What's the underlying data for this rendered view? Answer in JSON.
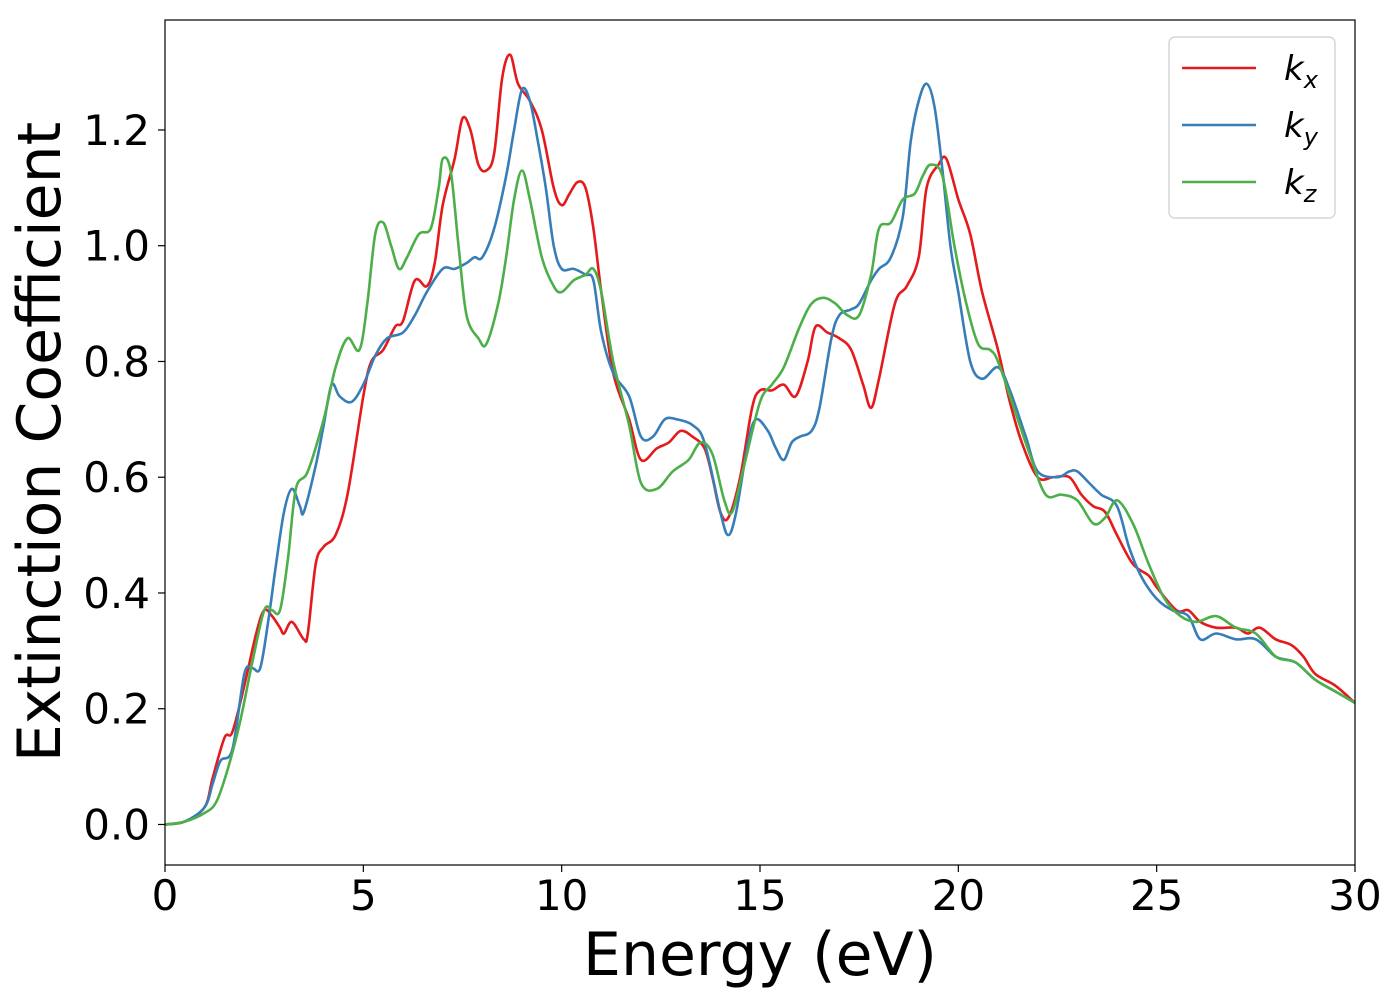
{
  "chart_data": {
    "type": "line",
    "xlabel": "Energy (eV)",
    "ylabel": "Extinction Coefficient",
    "xlim": [
      0,
      30
    ],
    "ylim": [
      -0.07,
      1.39
    ],
    "xticks": [
      0,
      5,
      10,
      15,
      20,
      25,
      30
    ],
    "yticks": [
      0.0,
      0.2,
      0.4,
      0.6,
      0.8,
      1.0,
      1.2
    ],
    "xtick_labels": [
      "0",
      "5",
      "10",
      "15",
      "20",
      "25",
      "30"
    ],
    "ytick_labels": [
      "0.0",
      "0.2",
      "0.4",
      "0.6",
      "0.8",
      "1.0",
      "1.2"
    ],
    "grid": false,
    "legend_position": "top-right",
    "series": [
      {
        "name": "k",
        "subscript": "x",
        "color": "#e41a1c",
        "points": [
          [
            0,
            0
          ],
          [
            0.5,
            0.005
          ],
          [
            1,
            0.03
          ],
          [
            1.2,
            0.08
          ],
          [
            1.5,
            0.15
          ],
          [
            1.7,
            0.16
          ],
          [
            2,
            0.24
          ],
          [
            2.3,
            0.33
          ],
          [
            2.5,
            0.37
          ],
          [
            2.7,
            0.36
          ],
          [
            2.9,
            0.34
          ],
          [
            3,
            0.33
          ],
          [
            3.2,
            0.35
          ],
          [
            3.5,
            0.32
          ],
          [
            3.6,
            0.33
          ],
          [
            3.8,
            0.45
          ],
          [
            4,
            0.48
          ],
          [
            4.3,
            0.5
          ],
          [
            4.6,
            0.57
          ],
          [
            5,
            0.74
          ],
          [
            5.2,
            0.8
          ],
          [
            5.5,
            0.82
          ],
          [
            5.8,
            0.86
          ],
          [
            6,
            0.87
          ],
          [
            6.3,
            0.94
          ],
          [
            6.6,
            0.93
          ],
          [
            6.8,
            0.97
          ],
          [
            7,
            1.07
          ],
          [
            7.3,
            1.15
          ],
          [
            7.5,
            1.22
          ],
          [
            7.7,
            1.2
          ],
          [
            7.9,
            1.14
          ],
          [
            8.1,
            1.13
          ],
          [
            8.3,
            1.16
          ],
          [
            8.5,
            1.29
          ],
          [
            8.7,
            1.33
          ],
          [
            8.9,
            1.28
          ],
          [
            9.2,
            1.25
          ],
          [
            9.5,
            1.2
          ],
          [
            9.8,
            1.1
          ],
          [
            10,
            1.07
          ],
          [
            10.2,
            1.09
          ],
          [
            10.4,
            1.11
          ],
          [
            10.6,
            1.1
          ],
          [
            10.8,
            1.03
          ],
          [
            11,
            0.92
          ],
          [
            11.3,
            0.78
          ],
          [
            11.7,
            0.7
          ],
          [
            12,
            0.63
          ],
          [
            12.4,
            0.65
          ],
          [
            12.7,
            0.66
          ],
          [
            13,
            0.68
          ],
          [
            13.3,
            0.67
          ],
          [
            13.6,
            0.65
          ],
          [
            13.8,
            0.6
          ],
          [
            14,
            0.54
          ],
          [
            14.2,
            0.53
          ],
          [
            14.5,
            0.6
          ],
          [
            14.8,
            0.72
          ],
          [
            15,
            0.75
          ],
          [
            15.3,
            0.75
          ],
          [
            15.6,
            0.76
          ],
          [
            15.9,
            0.74
          ],
          [
            16.2,
            0.8
          ],
          [
            16.4,
            0.86
          ],
          [
            16.7,
            0.85
          ],
          [
            17,
            0.84
          ],
          [
            17.3,
            0.82
          ],
          [
            17.6,
            0.76
          ],
          [
            17.8,
            0.72
          ],
          [
            18,
            0.77
          ],
          [
            18.4,
            0.9
          ],
          [
            18.7,
            0.93
          ],
          [
            19,
            0.98
          ],
          [
            19.2,
            1.1
          ],
          [
            19.5,
            1.14
          ],
          [
            19.7,
            1.15
          ],
          [
            20,
            1.08
          ],
          [
            20.3,
            1.02
          ],
          [
            20.6,
            0.92
          ],
          [
            21,
            0.82
          ],
          [
            21.3,
            0.73
          ],
          [
            21.6,
            0.66
          ],
          [
            22,
            0.6
          ],
          [
            22.4,
            0.6
          ],
          [
            22.8,
            0.6
          ],
          [
            23.1,
            0.57
          ],
          [
            23.4,
            0.55
          ],
          [
            23.7,
            0.54
          ],
          [
            24,
            0.5
          ],
          [
            24.4,
            0.45
          ],
          [
            24.8,
            0.43
          ],
          [
            25,
            0.41
          ],
          [
            25.5,
            0.37
          ],
          [
            25.8,
            0.37
          ],
          [
            26.1,
            0.35
          ],
          [
            26.5,
            0.34
          ],
          [
            27,
            0.34
          ],
          [
            27.3,
            0.33
          ],
          [
            27.6,
            0.34
          ],
          [
            28,
            0.32
          ],
          [
            28.4,
            0.31
          ],
          [
            28.7,
            0.29
          ],
          [
            29,
            0.26
          ],
          [
            29.5,
            0.24
          ],
          [
            30,
            0.21
          ]
        ]
      },
      {
        "name": "k",
        "subscript": "y",
        "color": "#377eb8",
        "points": [
          [
            0,
            0
          ],
          [
            0.5,
            0.005
          ],
          [
            1,
            0.03
          ],
          [
            1.2,
            0.07
          ],
          [
            1.4,
            0.11
          ],
          [
            1.7,
            0.13
          ],
          [
            2,
            0.26
          ],
          [
            2.2,
            0.27
          ],
          [
            2.4,
            0.27
          ],
          [
            2.6,
            0.35
          ],
          [
            2.8,
            0.45
          ],
          [
            3,
            0.54
          ],
          [
            3.2,
            0.58
          ],
          [
            3.4,
            0.55
          ],
          [
            3.5,
            0.54
          ],
          [
            3.8,
            0.62
          ],
          [
            4,
            0.69
          ],
          [
            4.2,
            0.76
          ],
          [
            4.4,
            0.74
          ],
          [
            4.7,
            0.73
          ],
          [
            5,
            0.76
          ],
          [
            5.3,
            0.81
          ],
          [
            5.6,
            0.84
          ],
          [
            6,
            0.85
          ],
          [
            6.3,
            0.88
          ],
          [
            6.6,
            0.92
          ],
          [
            7,
            0.96
          ],
          [
            7.3,
            0.96
          ],
          [
            7.6,
            0.97
          ],
          [
            7.8,
            0.98
          ],
          [
            8,
            0.98
          ],
          [
            8.3,
            1.03
          ],
          [
            8.6,
            1.12
          ],
          [
            8.8,
            1.2
          ],
          [
            9,
            1.27
          ],
          [
            9.2,
            1.25
          ],
          [
            9.4,
            1.18
          ],
          [
            9.6,
            1.1
          ],
          [
            9.8,
            1.0
          ],
          [
            10,
            0.96
          ],
          [
            10.3,
            0.96
          ],
          [
            10.6,
            0.95
          ],
          [
            10.8,
            0.94
          ],
          [
            11,
            0.85
          ],
          [
            11.3,
            0.78
          ],
          [
            11.7,
            0.74
          ],
          [
            12,
            0.67
          ],
          [
            12.3,
            0.67
          ],
          [
            12.6,
            0.7
          ],
          [
            12.9,
            0.7
          ],
          [
            13.3,
            0.69
          ],
          [
            13.6,
            0.66
          ],
          [
            14,
            0.54
          ],
          [
            14.2,
            0.5
          ],
          [
            14.4,
            0.54
          ],
          [
            14.7,
            0.66
          ],
          [
            14.9,
            0.7
          ],
          [
            15.2,
            0.68
          ],
          [
            15.4,
            0.65
          ],
          [
            15.6,
            0.63
          ],
          [
            15.8,
            0.66
          ],
          [
            16,
            0.67
          ],
          [
            16.3,
            0.68
          ],
          [
            16.5,
            0.72
          ],
          [
            16.8,
            0.84
          ],
          [
            17,
            0.88
          ],
          [
            17.3,
            0.89
          ],
          [
            17.5,
            0.9
          ],
          [
            17.8,
            0.94
          ],
          [
            18,
            0.96
          ],
          [
            18.3,
            0.98
          ],
          [
            18.6,
            1.05
          ],
          [
            18.8,
            1.18
          ],
          [
            19,
            1.25
          ],
          [
            19.2,
            1.28
          ],
          [
            19.4,
            1.24
          ],
          [
            19.6,
            1.13
          ],
          [
            19.8,
            1.0
          ],
          [
            20,
            0.92
          ],
          [
            20.3,
            0.8
          ],
          [
            20.6,
            0.77
          ],
          [
            21,
            0.79
          ],
          [
            21.3,
            0.75
          ],
          [
            21.7,
            0.67
          ],
          [
            22,
            0.61
          ],
          [
            22.5,
            0.6
          ],
          [
            22.8,
            0.61
          ],
          [
            23,
            0.61
          ],
          [
            23.3,
            0.59
          ],
          [
            23.6,
            0.57
          ],
          [
            24,
            0.55
          ],
          [
            24.3,
            0.48
          ],
          [
            24.6,
            0.43
          ],
          [
            25,
            0.39
          ],
          [
            25.4,
            0.37
          ],
          [
            25.8,
            0.36
          ],
          [
            26.1,
            0.32
          ],
          [
            26.5,
            0.33
          ],
          [
            27,
            0.32
          ],
          [
            27.5,
            0.32
          ],
          [
            28,
            0.29
          ],
          [
            28.5,
            0.28
          ],
          [
            29,
            0.25
          ],
          [
            29.5,
            0.23
          ],
          [
            30,
            0.21
          ]
        ]
      },
      {
        "name": "k",
        "subscript": "z",
        "color": "#4daf4a",
        "points": [
          [
            0,
            0
          ],
          [
            0.5,
            0.005
          ],
          [
            1,
            0.02
          ],
          [
            1.3,
            0.04
          ],
          [
            1.6,
            0.1
          ],
          [
            1.9,
            0.18
          ],
          [
            2.2,
            0.28
          ],
          [
            2.5,
            0.37
          ],
          [
            2.7,
            0.37
          ],
          [
            2.9,
            0.37
          ],
          [
            3.1,
            0.46
          ],
          [
            3.3,
            0.58
          ],
          [
            3.6,
            0.61
          ],
          [
            4,
            0.7
          ],
          [
            4.3,
            0.79
          ],
          [
            4.6,
            0.84
          ],
          [
            4.9,
            0.82
          ],
          [
            5.1,
            0.9
          ],
          [
            5.3,
            1.02
          ],
          [
            5.5,
            1.04
          ],
          [
            5.7,
            1.0
          ],
          [
            5.9,
            0.96
          ],
          [
            6.1,
            0.98
          ],
          [
            6.4,
            1.02
          ],
          [
            6.7,
            1.03
          ],
          [
            6.9,
            1.1
          ],
          [
            7,
            1.15
          ],
          [
            7.2,
            1.13
          ],
          [
            7.4,
            1.0
          ],
          [
            7.6,
            0.88
          ],
          [
            7.9,
            0.84
          ],
          [
            8.1,
            0.83
          ],
          [
            8.4,
            0.9
          ],
          [
            8.6,
            0.98
          ],
          [
            8.8,
            1.08
          ],
          [
            9,
            1.13
          ],
          [
            9.2,
            1.08
          ],
          [
            9.5,
            0.98
          ],
          [
            9.8,
            0.93
          ],
          [
            10,
            0.92
          ],
          [
            10.3,
            0.94
          ],
          [
            10.6,
            0.95
          ],
          [
            10.8,
            0.96
          ],
          [
            11,
            0.92
          ],
          [
            11.3,
            0.8
          ],
          [
            11.7,
            0.69
          ],
          [
            12,
            0.59
          ],
          [
            12.4,
            0.58
          ],
          [
            12.8,
            0.61
          ],
          [
            13.2,
            0.63
          ],
          [
            13.5,
            0.66
          ],
          [
            13.8,
            0.64
          ],
          [
            14.1,
            0.56
          ],
          [
            14.3,
            0.54
          ],
          [
            14.6,
            0.62
          ],
          [
            15,
            0.73
          ],
          [
            15.3,
            0.76
          ],
          [
            15.6,
            0.79
          ],
          [
            16,
            0.86
          ],
          [
            16.3,
            0.9
          ],
          [
            16.6,
            0.91
          ],
          [
            16.9,
            0.9
          ],
          [
            17.2,
            0.88
          ],
          [
            17.5,
            0.88
          ],
          [
            17.8,
            0.95
          ],
          [
            18,
            1.03
          ],
          [
            18.3,
            1.04
          ],
          [
            18.6,
            1.08
          ],
          [
            18.9,
            1.09
          ],
          [
            19.1,
            1.12
          ],
          [
            19.3,
            1.14
          ],
          [
            19.6,
            1.12
          ],
          [
            19.9,
            1.0
          ],
          [
            20.2,
            0.9
          ],
          [
            20.5,
            0.83
          ],
          [
            20.8,
            0.82
          ],
          [
            21,
            0.8
          ],
          [
            21.4,
            0.72
          ],
          [
            21.8,
            0.64
          ],
          [
            22.2,
            0.57
          ],
          [
            22.6,
            0.57
          ],
          [
            23,
            0.56
          ],
          [
            23.4,
            0.52
          ],
          [
            23.7,
            0.53
          ],
          [
            24,
            0.56
          ],
          [
            24.4,
            0.52
          ],
          [
            24.8,
            0.45
          ],
          [
            25.2,
            0.39
          ],
          [
            25.6,
            0.36
          ],
          [
            26,
            0.35
          ],
          [
            26.5,
            0.36
          ],
          [
            27,
            0.34
          ],
          [
            27.5,
            0.33
          ],
          [
            28,
            0.29
          ],
          [
            28.5,
            0.28
          ],
          [
            29,
            0.25
          ],
          [
            29.5,
            0.23
          ],
          [
            30,
            0.21
          ]
        ]
      }
    ]
  }
}
